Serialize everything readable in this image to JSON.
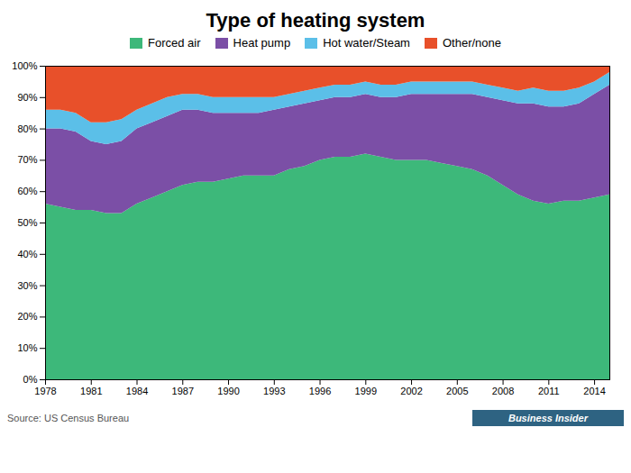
{
  "chart_data": {
    "type": "area",
    "stacked": true,
    "title": "Type of heating system",
    "source": "Source: US Census Bureau",
    "annotations": [
      "Business Insider"
    ],
    "legend": "top",
    "grid": false,
    "x": [
      1978,
      1979,
      1980,
      1981,
      1982,
      1983,
      1984,
      1985,
      1986,
      1987,
      1988,
      1989,
      1990,
      1991,
      1992,
      1993,
      1994,
      1995,
      1996,
      1997,
      1998,
      1999,
      2000,
      2001,
      2002,
      2003,
      2004,
      2005,
      2006,
      2007,
      2008,
      2009,
      2010,
      2011,
      2012,
      2013,
      2014,
      2015
    ],
    "series": [
      {
        "name": "Forced air",
        "color": "#3db87a",
        "values": [
          56,
          55,
          54,
          54,
          53,
          53,
          56,
          58,
          60,
          62,
          63,
          63,
          64,
          65,
          65,
          65,
          67,
          68,
          70,
          71,
          71,
          72,
          71,
          70,
          70,
          70,
          69,
          68,
          67,
          65,
          62,
          59,
          57,
          56,
          57,
          57,
          58,
          59
        ]
      },
      {
        "name": "Heat pump",
        "color": "#7b4fa6",
        "values": [
          24,
          25,
          25,
          22,
          22,
          23,
          24,
          24,
          24,
          24,
          23,
          22,
          21,
          20,
          20,
          21,
          20,
          20,
          19,
          19,
          19,
          19,
          19,
          20,
          21,
          21,
          22,
          23,
          24,
          25,
          27,
          29,
          31,
          31,
          30,
          31,
          33,
          35
        ]
      },
      {
        "name": "Hot water/Steam",
        "color": "#5bbfe8",
        "values": [
          6,
          6,
          6,
          6,
          7,
          7,
          6,
          6,
          6,
          5,
          5,
          5,
          5,
          5,
          5,
          4,
          4,
          4,
          4,
          4,
          4,
          4,
          4,
          4,
          4,
          4,
          4,
          4,
          4,
          4,
          4,
          4,
          5,
          5,
          5,
          5,
          4,
          4
        ]
      },
      {
        "name": "Other/none",
        "color": "#e8502a",
        "values": [
          14,
          14,
          15,
          18,
          18,
          17,
          14,
          12,
          10,
          9,
          9,
          10,
          10,
          10,
          10,
          10,
          9,
          8,
          7,
          6,
          6,
          5,
          6,
          6,
          5,
          5,
          5,
          5,
          5,
          6,
          7,
          8,
          7,
          8,
          8,
          7,
          5,
          2
        ]
      }
    ],
    "xlim": [
      1978,
      2015
    ],
    "xticks": [
      1978,
      1981,
      1984,
      1987,
      1990,
      1993,
      1996,
      1999,
      2002,
      2005,
      2008,
      2011,
      2014
    ],
    "ylim": [
      0,
      100
    ],
    "yticks": [
      {
        "value": 0,
        "label": "0%"
      },
      {
        "value": 10,
        "label": "10%"
      },
      {
        "value": 20,
        "label": "20%"
      },
      {
        "value": 30,
        "label": "30%"
      },
      {
        "value": 40,
        "label": "40%"
      },
      {
        "value": 50,
        "label": "50%"
      },
      {
        "value": 60,
        "label": "60%"
      },
      {
        "value": 70,
        "label": "70%"
      },
      {
        "value": 80,
        "label": "80%"
      },
      {
        "value": 90,
        "label": "90%"
      },
      {
        "value": 100,
        "label": "100%"
      }
    ]
  }
}
